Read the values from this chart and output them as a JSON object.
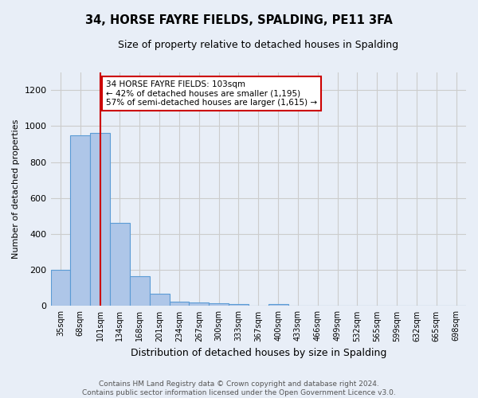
{
  "title": "34, HORSE FAYRE FIELDS, SPALDING, PE11 3FA",
  "subtitle": "Size of property relative to detached houses in Spalding",
  "xlabel": "Distribution of detached houses by size in Spalding",
  "ylabel": "Number of detached properties",
  "bin_labels": [
    "35sqm",
    "68sqm",
    "101sqm",
    "134sqm",
    "168sqm",
    "201sqm",
    "234sqm",
    "267sqm",
    "300sqm",
    "333sqm",
    "367sqm",
    "400sqm",
    "433sqm",
    "466sqm",
    "499sqm",
    "532sqm",
    "565sqm",
    "599sqm",
    "632sqm",
    "665sqm",
    "698sqm"
  ],
  "bar_values": [
    200,
    950,
    960,
    460,
    165,
    70,
    25,
    20,
    15,
    10,
    0,
    10,
    0,
    0,
    0,
    0,
    0,
    0,
    0,
    0,
    0
  ],
  "bar_color": "#aec6e8",
  "bar_edge_color": "#5b9bd5",
  "property_line_x": 2.0,
  "annotation_text": "34 HORSE FAYRE FIELDS: 103sqm\n← 42% of detached houses are smaller (1,195)\n57% of semi-detached houses are larger (1,615) →",
  "annotation_box_color": "#ffffff",
  "annotation_box_edge": "#cc0000",
  "property_line_color": "#cc0000",
  "ylim": [
    0,
    1300
  ],
  "yticks": [
    0,
    200,
    400,
    600,
    800,
    1000,
    1200
  ],
  "grid_color": "#cccccc",
  "bg_color": "#e8eef7",
  "footnote": "Contains HM Land Registry data © Crown copyright and database right 2024.\nContains public sector information licensed under the Open Government Licence v3.0."
}
